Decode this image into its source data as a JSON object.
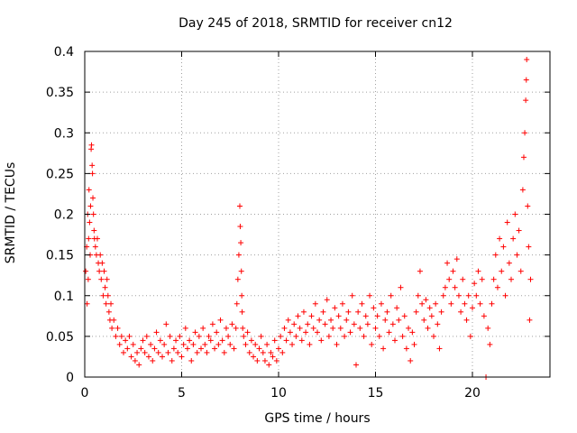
{
  "chart_data": {
    "type": "scatter",
    "title": "Day 245 of 2018, SRMTID for receiver cn12",
    "xlabel": "GPS time / hours",
    "ylabel": "SRMTID / TECUs",
    "xlim": [
      0,
      24
    ],
    "ylim": [
      0,
      0.4
    ],
    "grid": true,
    "marker": "+",
    "color": "#ff0000",
    "xticks": [
      0,
      5,
      10,
      15,
      20
    ],
    "yticks": [
      0,
      0.05,
      0.1,
      0.15,
      0.2,
      0.25,
      0.3,
      0.35,
      0.4
    ],
    "xtick_labels": [
      "0",
      "5",
      "10",
      "15",
      "20"
    ],
    "ytick_labels": [
      "0",
      "0.05",
      "0.1",
      "0.15",
      "0.2",
      "0.25",
      "0.3",
      "0.35",
      "0.4"
    ],
    "series": [
      {
        "name": "SRMTID",
        "points": [
          [
            0.05,
            0.13
          ],
          [
            0.1,
            0.16
          ],
          [
            0.12,
            0.09
          ],
          [
            0.15,
            0.2
          ],
          [
            0.18,
            0.12
          ],
          [
            0.2,
            0.17
          ],
          [
            0.22,
            0.23
          ],
          [
            0.25,
            0.19
          ],
          [
            0.28,
            0.15
          ],
          [
            0.3,
            0.21
          ],
          [
            0.33,
            0.28
          ],
          [
            0.35,
            0.285
          ],
          [
            0.38,
            0.26
          ],
          [
            0.4,
            0.25
          ],
          [
            0.42,
            0.22
          ],
          [
            0.45,
            0.2
          ],
          [
            0.48,
            0.18
          ],
          [
            0.5,
            0.17
          ],
          [
            0.55,
            0.16
          ],
          [
            0.6,
            0.15
          ],
          [
            0.65,
            0.17
          ],
          [
            0.7,
            0.14
          ],
          [
            0.75,
            0.13
          ],
          [
            0.8,
            0.15
          ],
          [
            0.85,
            0.12
          ],
          [
            0.9,
            0.14
          ],
          [
            0.95,
            0.1
          ],
          [
            1.0,
            0.13
          ],
          [
            1.05,
            0.11
          ],
          [
            1.1,
            0.09
          ],
          [
            1.15,
            0.12
          ],
          [
            1.2,
            0.1
          ],
          [
            1.25,
            0.08
          ],
          [
            1.3,
            0.07
          ],
          [
            1.35,
            0.09
          ],
          [
            1.4,
            0.06
          ],
          [
            1.5,
            0.07
          ],
          [
            1.6,
            0.05
          ],
          [
            1.7,
            0.06
          ],
          [
            1.8,
            0.04
          ],
          [
            1.9,
            0.05
          ],
          [
            2.0,
            0.03
          ],
          [
            2.1,
            0.045
          ],
          [
            2.2,
            0.035
          ],
          [
            2.3,
            0.05
          ],
          [
            2.4,
            0.025
          ],
          [
            2.5,
            0.04
          ],
          [
            2.6,
            0.02
          ],
          [
            2.7,
            0.03
          ],
          [
            2.8,
            0.015
          ],
          [
            2.9,
            0.035
          ],
          [
            3.0,
            0.045
          ],
          [
            3.1,
            0.03
          ],
          [
            3.2,
            0.05
          ],
          [
            3.3,
            0.025
          ],
          [
            3.4,
            0.04
          ],
          [
            3.5,
            0.02
          ],
          [
            3.6,
            0.035
          ],
          [
            3.7,
            0.055
          ],
          [
            3.8,
            0.03
          ],
          [
            3.9,
            0.045
          ],
          [
            4.0,
            0.025
          ],
          [
            4.1,
            0.04
          ],
          [
            4.2,
            0.065
          ],
          [
            4.3,
            0.03
          ],
          [
            4.4,
            0.05
          ],
          [
            4.5,
            0.02
          ],
          [
            4.6,
            0.035
          ],
          [
            4.7,
            0.045
          ],
          [
            4.8,
            0.03
          ],
          [
            4.9,
            0.05
          ],
          [
            5.0,
            0.025
          ],
          [
            5.1,
            0.04
          ],
          [
            5.2,
            0.06
          ],
          [
            5.3,
            0.035
          ],
          [
            5.4,
            0.045
          ],
          [
            5.5,
            0.02
          ],
          [
            5.6,
            0.04
          ],
          [
            5.7,
            0.055
          ],
          [
            5.8,
            0.03
          ],
          [
            5.9,
            0.05
          ],
          [
            6.0,
            0.035
          ],
          [
            6.1,
            0.06
          ],
          [
            6.2,
            0.04
          ],
          [
            6.3,
            0.03
          ],
          [
            6.4,
            0.05
          ],
          [
            6.5,
            0.045
          ],
          [
            6.6,
            0.065
          ],
          [
            6.7,
            0.035
          ],
          [
            6.8,
            0.055
          ],
          [
            6.9,
            0.04
          ],
          [
            7.0,
            0.07
          ],
          [
            7.1,
            0.045
          ],
          [
            7.2,
            0.03
          ],
          [
            7.3,
            0.06
          ],
          [
            7.4,
            0.05
          ],
          [
            7.5,
            0.04
          ],
          [
            7.6,
            0.065
          ],
          [
            7.7,
            0.035
          ],
          [
            7.8,
            0.06
          ],
          [
            7.85,
            0.09
          ],
          [
            7.9,
            0.12
          ],
          [
            7.95,
            0.15
          ],
          [
            8.0,
            0.21
          ],
          [
            8.02,
            0.185
          ],
          [
            8.05,
            0.165
          ],
          [
            8.08,
            0.13
          ],
          [
            8.1,
            0.1
          ],
          [
            8.12,
            0.08
          ],
          [
            8.15,
            0.06
          ],
          [
            8.2,
            0.05
          ],
          [
            8.3,
            0.04
          ],
          [
            8.4,
            0.055
          ],
          [
            8.5,
            0.03
          ],
          [
            8.6,
            0.045
          ],
          [
            8.7,
            0.025
          ],
          [
            8.8,
            0.04
          ],
          [
            8.9,
            0.02
          ],
          [
            9.0,
            0.035
          ],
          [
            9.1,
            0.05
          ],
          [
            9.2,
            0.03
          ],
          [
            9.3,
            0.02
          ],
          [
            9.4,
            0.04
          ],
          [
            9.5,
            0.015
          ],
          [
            9.6,
            0.03
          ],
          [
            9.7,
            0.025
          ],
          [
            9.8,
            0.045
          ],
          [
            9.9,
            0.02
          ],
          [
            10.0,
            0.035
          ],
          [
            10.1,
            0.05
          ],
          [
            10.2,
            0.03
          ],
          [
            10.3,
            0.06
          ],
          [
            10.4,
            0.045
          ],
          [
            10.5,
            0.07
          ],
          [
            10.6,
            0.055
          ],
          [
            10.7,
            0.04
          ],
          [
            10.8,
            0.065
          ],
          [
            10.9,
            0.05
          ],
          [
            11.0,
            0.075
          ],
          [
            11.1,
            0.06
          ],
          [
            11.2,
            0.045
          ],
          [
            11.3,
            0.08
          ],
          [
            11.4,
            0.055
          ],
          [
            11.5,
            0.065
          ],
          [
            11.6,
            0.04
          ],
          [
            11.7,
            0.075
          ],
          [
            11.8,
            0.06
          ],
          [
            11.9,
            0.09
          ],
          [
            12.0,
            0.055
          ],
          [
            12.1,
            0.07
          ],
          [
            12.2,
            0.045
          ],
          [
            12.3,
            0.08
          ],
          [
            12.4,
            0.065
          ],
          [
            12.5,
            0.095
          ],
          [
            12.6,
            0.05
          ],
          [
            12.7,
            0.07
          ],
          [
            12.8,
            0.06
          ],
          [
            12.9,
            0.085
          ],
          [
            13.0,
            0.04
          ],
          [
            13.1,
            0.075
          ],
          [
            13.2,
            0.06
          ],
          [
            13.3,
            0.09
          ],
          [
            13.4,
            0.05
          ],
          [
            13.5,
            0.07
          ],
          [
            13.6,
            0.08
          ],
          [
            13.7,
            0.055
          ],
          [
            13.8,
            0.1
          ],
          [
            13.9,
            0.065
          ],
          [
            14.0,
            0.015
          ],
          [
            14.1,
            0.08
          ],
          [
            14.2,
            0.06
          ],
          [
            14.3,
            0.09
          ],
          [
            14.4,
            0.05
          ],
          [
            14.5,
            0.075
          ],
          [
            14.6,
            0.065
          ],
          [
            14.7,
            0.1
          ],
          [
            14.8,
            0.04
          ],
          [
            14.9,
            0.085
          ],
          [
            15.0,
            0.06
          ],
          [
            15.1,
            0.075
          ],
          [
            15.2,
            0.05
          ],
          [
            15.3,
            0.09
          ],
          [
            15.4,
            0.035
          ],
          [
            15.5,
            0.07
          ],
          [
            15.6,
            0.08
          ],
          [
            15.7,
            0.055
          ],
          [
            15.8,
            0.1
          ],
          [
            15.9,
            0.065
          ],
          [
            16.0,
            0.045
          ],
          [
            16.1,
            0.085
          ],
          [
            16.2,
            0.07
          ],
          [
            16.3,
            0.11
          ],
          [
            16.4,
            0.05
          ],
          [
            16.5,
            0.075
          ],
          [
            16.6,
            0.035
          ],
          [
            16.7,
            0.06
          ],
          [
            16.8,
            0.02
          ],
          [
            16.9,
            0.055
          ],
          [
            17.0,
            0.04
          ],
          [
            17.1,
            0.08
          ],
          [
            17.2,
            0.1
          ],
          [
            17.3,
            0.13
          ],
          [
            17.4,
            0.09
          ],
          [
            17.5,
            0.07
          ],
          [
            17.6,
            0.095
          ],
          [
            17.7,
            0.06
          ],
          [
            17.8,
            0.085
          ],
          [
            17.9,
            0.075
          ],
          [
            18.0,
            0.05
          ],
          [
            18.1,
            0.09
          ],
          [
            18.2,
            0.065
          ],
          [
            18.3,
            0.035
          ],
          [
            18.4,
            0.08
          ],
          [
            18.5,
            0.1
          ],
          [
            18.6,
            0.11
          ],
          [
            18.7,
            0.14
          ],
          [
            18.8,
            0.12
          ],
          [
            18.9,
            0.09
          ],
          [
            19.0,
            0.13
          ],
          [
            19.1,
            0.11
          ],
          [
            19.2,
            0.145
          ],
          [
            19.3,
            0.1
          ],
          [
            19.4,
            0.08
          ],
          [
            19.5,
            0.12
          ],
          [
            19.6,
            0.09
          ],
          [
            19.7,
            0.07
          ],
          [
            19.8,
            0.1
          ],
          [
            19.9,
            0.05
          ],
          [
            20.0,
            0.085
          ],
          [
            20.1,
            0.115
          ],
          [
            20.2,
            0.1
          ],
          [
            20.3,
            0.13
          ],
          [
            20.4,
            0.09
          ],
          [
            20.5,
            0.12
          ],
          [
            20.6,
            0.075
          ],
          [
            20.7,
            0.0
          ],
          [
            20.8,
            0.06
          ],
          [
            20.9,
            0.04
          ],
          [
            21.0,
            0.09
          ],
          [
            21.1,
            0.12
          ],
          [
            21.2,
            0.15
          ],
          [
            21.3,
            0.11
          ],
          [
            21.4,
            0.17
          ],
          [
            21.5,
            0.13
          ],
          [
            21.6,
            0.16
          ],
          [
            21.7,
            0.1
          ],
          [
            21.8,
            0.19
          ],
          [
            21.9,
            0.14
          ],
          [
            22.0,
            0.12
          ],
          [
            22.1,
            0.17
          ],
          [
            22.2,
            0.2
          ],
          [
            22.3,
            0.15
          ],
          [
            22.4,
            0.18
          ],
          [
            22.5,
            0.13
          ],
          [
            22.6,
            0.23
          ],
          [
            22.65,
            0.27
          ],
          [
            22.7,
            0.3
          ],
          [
            22.75,
            0.34
          ],
          [
            22.78,
            0.365
          ],
          [
            22.8,
            0.39
          ],
          [
            22.85,
            0.21
          ],
          [
            22.9,
            0.16
          ],
          [
            22.95,
            0.07
          ],
          [
            23.0,
            0.12
          ]
        ]
      }
    ]
  }
}
